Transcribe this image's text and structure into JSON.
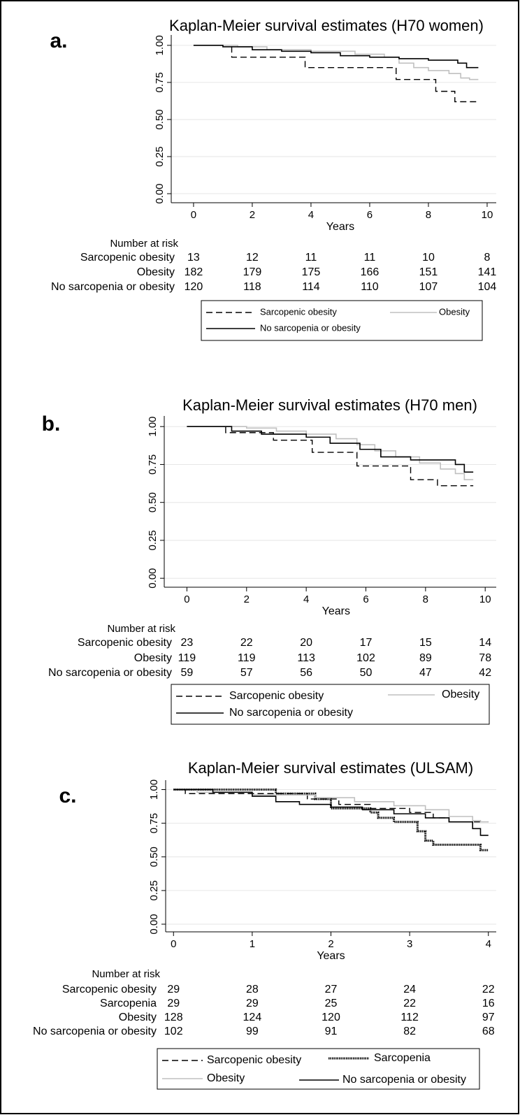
{
  "chart_data": [
    {
      "type": "line",
      "step": true,
      "panel_label": "a.",
      "title": "Kaplan-Meier survival estimates (H70 women)",
      "x_label": "Years",
      "xlim": [
        -0.76,
        10.31
      ],
      "xticks": [
        0,
        2,
        4,
        6,
        8,
        10
      ],
      "ylim": [
        -0.061,
        1.07
      ],
      "yticks": [
        {
          "value": 0,
          "label": "0.00"
        },
        {
          "value": 0.25,
          "label": "0.25"
        },
        {
          "value": 0.5,
          "label": "0.50"
        },
        {
          "value": 0.75,
          "label": "0.75"
        },
        {
          "value": 1,
          "label": "1.00"
        }
      ],
      "grid": true,
      "risk_title": "Number at risk",
      "series": [
        {
          "name": "Sarcopenic obesity",
          "color": "#000000",
          "dash": "dashed",
          "x": [
            0,
            1.3,
            3.8,
            6.9,
            8.25,
            8.9,
            9.7
          ],
          "values": [
            1,
            0.92,
            0.85,
            0.77,
            0.69,
            0.62,
            0.62
          ],
          "at_risk": [
            13,
            12,
            11,
            11,
            10,
            8
          ]
        },
        {
          "name": "Obesity",
          "color": "#c0c0c0",
          "dash": "solid",
          "x": [
            0,
            1.5,
            2.5,
            4,
            5.5,
            6.5,
            7,
            7.5,
            8,
            8.7,
            9.1,
            9.4,
            9.7
          ],
          "values": [
            1,
            0.99,
            0.97,
            0.96,
            0.94,
            0.92,
            0.88,
            0.85,
            0.83,
            0.81,
            0.78,
            0.77,
            0.77
          ],
          "at_risk": [
            182,
            179,
            175,
            166,
            151,
            141
          ]
        },
        {
          "name": "No sarcopenia or obesity",
          "color": "#000000",
          "dash": "solid",
          "x": [
            0,
            1,
            2,
            3,
            4,
            5,
            6,
            7,
            8,
            9,
            9.3,
            9.7
          ],
          "values": [
            1,
            0.99,
            0.97,
            0.96,
            0.95,
            0.93,
            0.92,
            0.91,
            0.9,
            0.88,
            0.85,
            0.85
          ],
          "at_risk": [
            120,
            118,
            114,
            110,
            107,
            104
          ]
        }
      ]
    },
    {
      "type": "line",
      "step": true,
      "panel_label": "b.",
      "title": "Kaplan-Meier survival estimates (H70 men)",
      "x_label": "Years",
      "xlim": [
        -0.76,
        10.37
      ],
      "xticks": [
        0,
        2,
        4,
        6,
        8,
        10
      ],
      "ylim": [
        -0.059,
        1.07
      ],
      "yticks": [
        {
          "value": 0,
          "label": "0.00"
        },
        {
          "value": 0.25,
          "label": "0.25"
        },
        {
          "value": 0.5,
          "label": "0.50"
        },
        {
          "value": 0.75,
          "label": "0.75"
        },
        {
          "value": 1,
          "label": "1.00"
        }
      ],
      "grid": true,
      "risk_title": "Number at risk",
      "series": [
        {
          "name": "Sarcopenic obesity",
          "color": "#000000",
          "dash": "dashed",
          "x": [
            0,
            1.3,
            2.9,
            4.2,
            5.7,
            7.5,
            8.4,
            9.6
          ],
          "values": [
            1,
            0.96,
            0.91,
            0.83,
            0.74,
            0.65,
            0.61,
            0.61
          ],
          "at_risk": [
            23,
            22,
            20,
            17,
            15,
            14
          ]
        },
        {
          "name": "Obesity",
          "color": "#c0c0c0",
          "dash": "solid",
          "x": [
            0,
            2,
            3,
            4,
            5,
            5.7,
            6.3,
            7,
            7.8,
            8.5,
            9,
            9.3,
            9.6
          ],
          "values": [
            1,
            0.99,
            0.97,
            0.95,
            0.92,
            0.88,
            0.84,
            0.8,
            0.76,
            0.72,
            0.69,
            0.65,
            0.65
          ],
          "at_risk": [
            119,
            119,
            113,
            102,
            89,
            78
          ]
        },
        {
          "name": "No sarcopenia or obesity",
          "color": "#000000",
          "dash": "solid",
          "x": [
            0,
            1.5,
            2.5,
            4,
            4.8,
            5.8,
            6.5,
            7.5,
            9,
            9.3,
            9.6
          ],
          "values": [
            1,
            0.97,
            0.95,
            0.93,
            0.89,
            0.85,
            0.8,
            0.78,
            0.75,
            0.7,
            0.7
          ],
          "at_risk": [
            59,
            57,
            56,
            50,
            47,
            42
          ]
        }
      ]
    },
    {
      "type": "line",
      "step": true,
      "panel_label": "c.",
      "title": "Kaplan-Meier survival estimates (ULSAM)",
      "x_label": "Years",
      "xlim": [
        -0.1,
        4.1
      ],
      "xticks": [
        0,
        1,
        2,
        3,
        4
      ],
      "ylim": [
        -0.057,
        1.07
      ],
      "yticks": [
        {
          "value": 0,
          "label": "0.00"
        },
        {
          "value": 0.25,
          "label": "0.25"
        },
        {
          "value": 0.5,
          "label": "0.50"
        },
        {
          "value": 0.75,
          "label": "0.75"
        },
        {
          "value": 1,
          "label": "1.00"
        }
      ],
      "grid": true,
      "risk_title": "Number at risk",
      "series": [
        {
          "name": "Sarcopenic obesity",
          "color": "#000000",
          "dash": "dashed",
          "x": [
            0,
            0.15,
            1.7,
            2.1,
            2.5,
            3.0,
            3.3,
            3.5,
            4.0
          ],
          "values": [
            1,
            0.97,
            0.93,
            0.89,
            0.86,
            0.83,
            0.79,
            0.76,
            0.76
          ],
          "at_risk": [
            29,
            28,
            27,
            24,
            22
          ]
        },
        {
          "name": "Sarcopenia",
          "color": "#000000",
          "dash": "dotted",
          "x": [
            0,
            1.3,
            1.8,
            2.0,
            2.5,
            2.6,
            2.8,
            3.1,
            3.2,
            3.3,
            3.9,
            4.0
          ],
          "values": [
            1,
            0.97,
            0.93,
            0.86,
            0.83,
            0.79,
            0.76,
            0.69,
            0.62,
            0.59,
            0.55,
            0.55
          ],
          "at_risk": [
            29,
            29,
            25,
            22,
            16
          ]
        },
        {
          "name": "Obesity",
          "color": "#c0c0c0",
          "dash": "solid",
          "x": [
            0,
            0.3,
            1.0,
            1.8,
            2.3,
            2.8,
            3.2,
            3.5,
            3.8,
            3.9,
            4.0
          ],
          "values": [
            1,
            0.98,
            0.96,
            0.94,
            0.91,
            0.88,
            0.85,
            0.8,
            0.77,
            0.76,
            0.76
          ],
          "at_risk": [
            128,
            124,
            120,
            112,
            97
          ]
        },
        {
          "name": "No sarcopenia or obesity",
          "color": "#000000",
          "dash": "solid",
          "x": [
            0,
            0.5,
            1.0,
            1.3,
            1.6,
            2.0,
            2.4,
            2.8,
            3.2,
            3.5,
            3.8,
            3.9,
            4.0
          ],
          "values": [
            1,
            0.98,
            0.95,
            0.91,
            0.89,
            0.87,
            0.85,
            0.82,
            0.79,
            0.76,
            0.71,
            0.66,
            0.66
          ],
          "at_risk": [
            102,
            99,
            91,
            82,
            68
          ]
        }
      ]
    }
  ]
}
